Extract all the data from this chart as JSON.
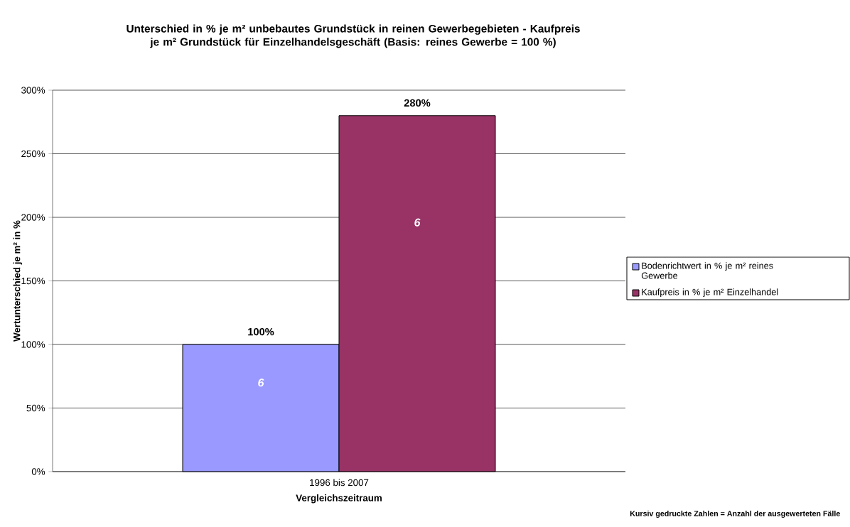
{
  "chart_data": {
    "type": "bar",
    "title": "Unterschied in % je m² unbebautes Grundstück in reinen Gewerbegebieten - Kaufpreis je m² Grundstück für Einzelhandelsgeschäft (Basis: reines Gewerbe = 100 %)",
    "xlabel": "Vergleichszeitraum",
    "ylabel": "Wertunterschied je m² in %",
    "categories": [
      "1996 bis 2007"
    ],
    "series": [
      {
        "name": "Bodenrichtwert in % je m² reines Gewerbe",
        "color": "#9999ff",
        "values": [
          100
        ],
        "value_labels": [
          "100%"
        ]
      },
      {
        "name": "Kaufpreis in % je m² Einzelhandel",
        "color": "#993366",
        "values": [
          280
        ],
        "value_labels": [
          "280%"
        ]
      }
    ],
    "ylim": [
      0,
      300
    ],
    "yticks": [
      {
        "value": 0,
        "label": "0%"
      },
      {
        "value": 50,
        "label": "50%"
      },
      {
        "value": 100,
        "label": "100%"
      },
      {
        "value": 150,
        "label": "150%"
      },
      {
        "value": 200,
        "label": "200%"
      },
      {
        "value": 250,
        "label": "250%"
      },
      {
        "value": 300,
        "label": "300%"
      }
    ],
    "grid": "y",
    "legend": "right",
    "annotations": [
      "6",
      "6",
      "Kursiv gedruckte Zahlen = Anzahl der ausgewerteten Fälle"
    ]
  }
}
